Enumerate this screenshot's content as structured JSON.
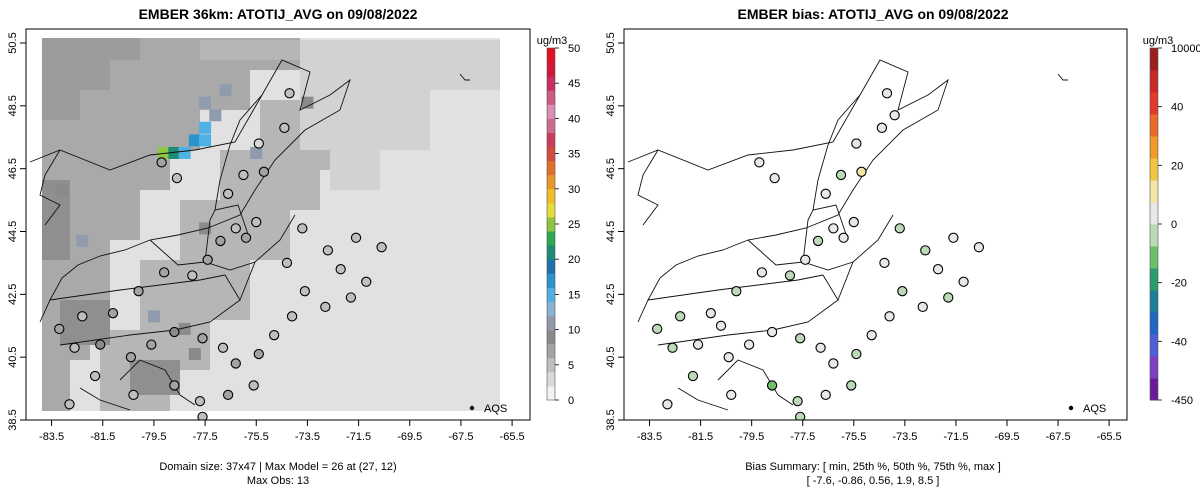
{
  "chart_data": [
    {
      "type": "heatmap",
      "title": "EMBER 36km: ATOTIJ_AVG on 09/08/2022",
      "x_ticks": [
        "-83.5",
        "-81.5",
        "-79.5",
        "-77.5",
        "-75.5",
        "-73.5",
        "-71.5",
        "-69.5",
        "-67.5",
        "-65.5"
      ],
      "y_ticks": [
        "38.5",
        "40.5",
        "42.5",
        "44.5",
        "46.5",
        "48.5",
        "50.5"
      ],
      "xlim": [
        -84.5,
        -64.8
      ],
      "ylim": [
        38.5,
        50.5
      ],
      "legend_label": "AQS",
      "colorbar": {
        "unit": "ug/m3",
        "range": [
          0,
          50
        ],
        "ticks": [
          "0",
          "5",
          "10",
          "15",
          "20",
          "25",
          "30",
          "35",
          "40",
          "45",
          "50"
        ],
        "colors": [
          "#f2f2f2",
          "#d9d9d9",
          "#bfbfbf",
          "#a3a3a3",
          "#8a8a8a",
          "#909cae",
          "#86b3d6",
          "#4fb0e4",
          "#2a93cf",
          "#1d72ab",
          "#1d8a78",
          "#2ea84e",
          "#8dc63f",
          "#e6dc38",
          "#f0be2a",
          "#e8982a",
          "#e0702c",
          "#d64a3d",
          "#cc3a5c",
          "#d06a8c",
          "#d88fb2",
          "#cf5a86",
          "#cb2e5e",
          "#d1183b",
          "#e01020"
        ]
      },
      "caption_lines": [
        "Domain size: 37x47 | Max Model = 26 at (27, 12)",
        "Max Obs: 13"
      ],
      "grid_cells": [
        {
          "lon": -79.1,
          "lat": 47.0,
          "value": 24
        },
        {
          "lon": -78.7,
          "lat": 47.0,
          "value": 20
        },
        {
          "lon": -78.3,
          "lat": 47.0,
          "value": 14
        },
        {
          "lon": -77.9,
          "lat": 47.4,
          "value": 16
        },
        {
          "lon": -77.5,
          "lat": 47.8,
          "value": 15
        },
        {
          "lon": -77.5,
          "lat": 47.4,
          "value": 14
        },
        {
          "lon": -77.1,
          "lat": 48.2,
          "value": 11
        },
        {
          "lon": -77.5,
          "lat": 48.6,
          "value": 11
        },
        {
          "lon": -76.7,
          "lat": 49.0,
          "value": 10
        },
        {
          "lon": -73.5,
          "lat": 48.6,
          "value": 9
        },
        {
          "lon": -78.3,
          "lat": 41.4,
          "value": 9
        },
        {
          "lon": -77.9,
          "lat": 40.6,
          "value": 9
        },
        {
          "lon": -79.5,
          "lat": 41.8,
          "value": 10
        },
        {
          "lon": -83.1,
          "lat": 45.8,
          "value": 9
        },
        {
          "lon": -82.3,
          "lat": 44.2,
          "value": 10
        },
        {
          "lon": -75.5,
          "lat": 47.0,
          "value": 10
        },
        {
          "lon": -77.5,
          "lat": 44.6,
          "value": 9
        }
      ],
      "observations": [
        {
          "lon": -79.2,
          "lat": 46.7,
          "value": 6
        },
        {
          "lon": -78.6,
          "lat": 46.2,
          "value": 5
        },
        {
          "lon": -76.6,
          "lat": 45.7,
          "value": 5
        },
        {
          "lon": -76.0,
          "lat": 46.3,
          "value": 4
        },
        {
          "lon": -75.2,
          "lat": 46.4,
          "value": 6
        },
        {
          "lon": -75.4,
          "lat": 47.3,
          "value": 3
        },
        {
          "lon": -74.4,
          "lat": 47.8,
          "value": 4
        },
        {
          "lon": -74.2,
          "lat": 48.9,
          "value": 4
        },
        {
          "lon": -76.3,
          "lat": 44.6,
          "value": 5
        },
        {
          "lon": -75.9,
          "lat": 44.3,
          "value": 6
        },
        {
          "lon": -75.5,
          "lat": 44.8,
          "value": 5
        },
        {
          "lon": -76.9,
          "lat": 44.2,
          "value": 7
        },
        {
          "lon": -77.4,
          "lat": 43.6,
          "value": 6
        },
        {
          "lon": -78.0,
          "lat": 43.1,
          "value": 5
        },
        {
          "lon": -79.1,
          "lat": 43.2,
          "value": 6
        },
        {
          "lon": -80.1,
          "lat": 42.6,
          "value": 7
        },
        {
          "lon": -81.1,
          "lat": 41.9,
          "value": 6
        },
        {
          "lon": -82.3,
          "lat": 41.8,
          "value": 5
        },
        {
          "lon": -83.2,
          "lat": 41.4,
          "value": 6
        },
        {
          "lon": -82.6,
          "lat": 40.8,
          "value": 5
        },
        {
          "lon": -81.6,
          "lat": 40.9,
          "value": 8
        },
        {
          "lon": -80.4,
          "lat": 40.5,
          "value": 6
        },
        {
          "lon": -79.6,
          "lat": 40.9,
          "value": 7
        },
        {
          "lon": -78.7,
          "lat": 41.3,
          "value": 9
        },
        {
          "lon": -77.6,
          "lat": 41.1,
          "value": 6
        },
        {
          "lon": -76.8,
          "lat": 40.8,
          "value": 5
        },
        {
          "lon": -76.3,
          "lat": 40.3,
          "value": 6
        },
        {
          "lon": -75.4,
          "lat": 40.6,
          "value": 6
        },
        {
          "lon": -74.8,
          "lat": 41.2,
          "value": 5
        },
        {
          "lon": -74.1,
          "lat": 41.8,
          "value": 4
        },
        {
          "lon": -73.6,
          "lat": 42.6,
          "value": 5
        },
        {
          "lon": -72.8,
          "lat": 42.1,
          "value": 4
        },
        {
          "lon": -71.8,
          "lat": 42.4,
          "value": 5
        },
        {
          "lon": -71.2,
          "lat": 42.9,
          "value": 4
        },
        {
          "lon": -72.2,
          "lat": 43.3,
          "value": 5
        },
        {
          "lon": -72.7,
          "lat": 43.9,
          "value": 4
        },
        {
          "lon": -71.6,
          "lat": 44.3,
          "value": 5
        },
        {
          "lon": -70.6,
          "lat": 44.0,
          "value": 4
        },
        {
          "lon": -73.7,
          "lat": 44.6,
          "value": 5
        },
        {
          "lon": -74.3,
          "lat": 43.5,
          "value": 4
        },
        {
          "lon": -78.7,
          "lat": 39.6,
          "value": 6
        },
        {
          "lon": -77.7,
          "lat": 39.1,
          "value": 5
        },
        {
          "lon": -76.6,
          "lat": 39.3,
          "value": 6
        },
        {
          "lon": -75.6,
          "lat": 39.6,
          "value": 5
        },
        {
          "lon": -80.3,
          "lat": 39.3,
          "value": 4
        },
        {
          "lon": -81.8,
          "lat": 39.9,
          "value": 5
        },
        {
          "lon": -82.8,
          "lat": 39.0,
          "value": 4
        },
        {
          "lon": -77.6,
          "lat": 38.6,
          "value": 5
        }
      ]
    },
    {
      "type": "scatter",
      "title": "EMBER bias: ATOTIJ_AVG on 09/08/2022",
      "x_ticks": [
        "-83.5",
        "-81.5",
        "-79.5",
        "-77.5",
        "-75.5",
        "-73.5",
        "-71.5",
        "-69.5",
        "-67.5",
        "-65.5"
      ],
      "y_ticks": [
        "38.5",
        "40.5",
        "42.5",
        "44.5",
        "46.5",
        "48.5",
        "50.5"
      ],
      "xlim": [
        -84.5,
        -64.8
      ],
      "ylim": [
        38.5,
        50.5
      ],
      "legend_label": "AQS",
      "colorbar": {
        "unit": "ug/m3",
        "range": [
          -450,
          10000
        ],
        "ticks": [
          "-450",
          "-40",
          "-20",
          "0",
          "20",
          "40",
          "10000"
        ],
        "colors": [
          "#6a1b9a",
          "#7b3fc0",
          "#4f5fd6",
          "#2266c4",
          "#1e7f9a",
          "#2a9d6a",
          "#6fbf6a",
          "#bcd9b8",
          "#e8e8e8",
          "#f1e6a8",
          "#f0c640",
          "#ef9a2a",
          "#ea6a2a",
          "#e23a2a",
          "#c82a2a",
          "#9c1f1f"
        ]
      },
      "caption_lines": [
        "Bias Summary: [ min, 25th %, 50th %, 75th %, max ]",
        "[ -7.6,   -0.86,   0.56,   1.9,   8.5 ]"
      ],
      "points": [
        {
          "lon": -79.2,
          "lat": 46.7,
          "value": 0.4
        },
        {
          "lon": -78.6,
          "lat": 46.2,
          "value": 1.8
        },
        {
          "lon": -76.6,
          "lat": 45.7,
          "value": 0.2
        },
        {
          "lon": -76.0,
          "lat": 46.3,
          "value": -0.5
        },
        {
          "lon": -75.2,
          "lat": 46.4,
          "value": 8.5
        },
        {
          "lon": -75.4,
          "lat": 47.3,
          "value": 1.2
        },
        {
          "lon": -74.4,
          "lat": 47.8,
          "value": 0.3
        },
        {
          "lon": -74.2,
          "lat": 48.9,
          "value": 0.7
        },
        {
          "lon": -73.9,
          "lat": 48.2,
          "value": 2.4
        },
        {
          "lon": -76.3,
          "lat": 44.6,
          "value": 2.1
        },
        {
          "lon": -75.9,
          "lat": 44.3,
          "value": 1.5
        },
        {
          "lon": -75.5,
          "lat": 44.8,
          "value": 0.9
        },
        {
          "lon": -76.9,
          "lat": 44.2,
          "value": -1.2
        },
        {
          "lon": -77.4,
          "lat": 43.6,
          "value": 0.4
        },
        {
          "lon": -78.0,
          "lat": 43.1,
          "value": -0.6
        },
        {
          "lon": -79.1,
          "lat": 43.2,
          "value": 0.5
        },
        {
          "lon": -80.1,
          "lat": 42.6,
          "value": -0.9
        },
        {
          "lon": -81.1,
          "lat": 41.9,
          "value": 1.9
        },
        {
          "lon": -82.3,
          "lat": 41.8,
          "value": -1.8
        },
        {
          "lon": -83.2,
          "lat": 41.4,
          "value": -2.6
        },
        {
          "lon": -82.6,
          "lat": 40.8,
          "value": -1.1
        },
        {
          "lon": -81.6,
          "lat": 40.9,
          "value": 3.2
        },
        {
          "lon": -80.4,
          "lat": 40.5,
          "value": 5.6
        },
        {
          "lon": -79.6,
          "lat": 40.9,
          "value": 2.7
        },
        {
          "lon": -78.7,
          "lat": 41.3,
          "value": 3.8
        },
        {
          "lon": -77.6,
          "lat": 41.1,
          "value": -0.4
        },
        {
          "lon": -76.8,
          "lat": 40.8,
          "value": 1.4
        },
        {
          "lon": -76.3,
          "lat": 40.3,
          "value": 4.6
        },
        {
          "lon": -75.4,
          "lat": 40.6,
          "value": -3.4
        },
        {
          "lon": -74.8,
          "lat": 41.2,
          "value": 0.6
        },
        {
          "lon": -74.1,
          "lat": 41.8,
          "value": 2.2
        },
        {
          "lon": -73.6,
          "lat": 42.6,
          "value": -0.2
        },
        {
          "lon": -72.8,
          "lat": 42.1,
          "value": 0.8
        },
        {
          "lon": -71.8,
          "lat": 42.4,
          "value": -0.7
        },
        {
          "lon": -71.2,
          "lat": 42.9,
          "value": 1.1
        },
        {
          "lon": -72.2,
          "lat": 43.3,
          "value": 0.3
        },
        {
          "lon": -72.7,
          "lat": 43.9,
          "value": -0.3
        },
        {
          "lon": -71.6,
          "lat": 44.3,
          "value": 2.9
        },
        {
          "lon": -70.6,
          "lat": 44.0,
          "value": 0.5
        },
        {
          "lon": -73.7,
          "lat": 44.6,
          "value": -0.9
        },
        {
          "lon": -74.3,
          "lat": 43.5,
          "value": 1.6
        },
        {
          "lon": -78.7,
          "lat": 39.6,
          "value": -7.6
        },
        {
          "lon": -77.7,
          "lat": 39.1,
          "value": -2.2
        },
        {
          "lon": -76.6,
          "lat": 39.3,
          "value": 0.1
        },
        {
          "lon": -75.6,
          "lat": 39.6,
          "value": -1.6
        },
        {
          "lon": -80.3,
          "lat": 39.3,
          "value": 0.9
        },
        {
          "lon": -81.8,
          "lat": 39.9,
          "value": -0.8
        },
        {
          "lon": -82.8,
          "lat": 39.0,
          "value": 1.3
        },
        {
          "lon": -77.6,
          "lat": 38.6,
          "value": -0.6
        },
        {
          "lon": -80.7,
          "lat": 41.5,
          "value": 4.1
        }
      ]
    }
  ]
}
